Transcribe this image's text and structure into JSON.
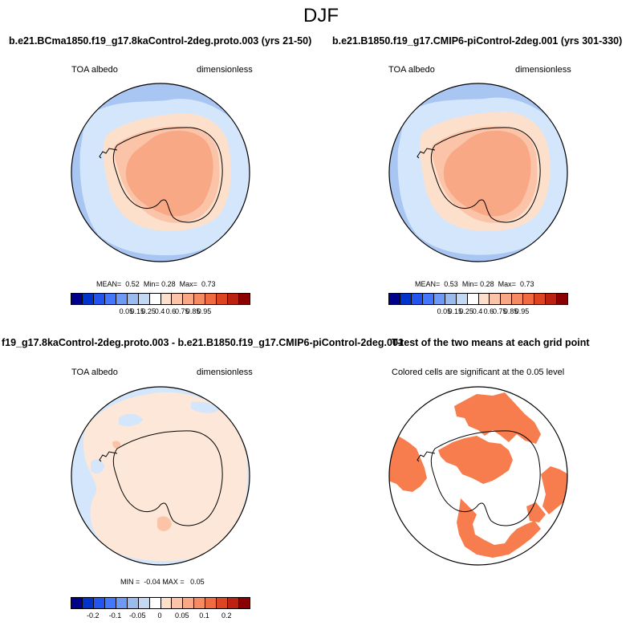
{
  "season": "DJF",
  "panels": {
    "top_left": {
      "case_title": "b.e21.BCma1850.f19_g17.8kaControl-2deg.proto.003 (yrs 21-50)",
      "variable": "TOA albedo",
      "units": "dimensionless",
      "stats": {
        "mean_label": "MEAN=",
        "mean": "0.52",
        "min_label": "Min=",
        "min": "0.28",
        "max_label": "Max=",
        "max": "0.73"
      }
    },
    "top_right": {
      "case_title": "b.e21.B1850.f19_g17.CMIP6-piControl-2deg.001 (yrs 301-330)",
      "variable": "TOA albedo",
      "units": "dimensionless",
      "stats": {
        "mean_label": "MEAN=",
        "mean": "0.53",
        "min_label": "Min=",
        "min": "0.28",
        "max_label": "Max=",
        "max": "0.73"
      }
    },
    "bottom_left": {
      "diff_title": "f19_g17.8kaControl-2deg.proto.003 - b.e21.B1850.f19_g17.CMIP6-piControl-2deg.001",
      "variable": "TOA albedo",
      "units": "dimensionless",
      "stats": {
        "min_label": "MIN =",
        "min": "-0.04",
        "max_label": "MAX =",
        "max": "0.05"
      }
    },
    "bottom_right": {
      "title": "T-test of the two means at each grid point",
      "subtitle": "Colored cells are significant at the 0.05 level"
    }
  },
  "colorbar_abs": {
    "colors": [
      "#00008b",
      "#0033cc",
      "#2255ee",
      "#4477ff",
      "#6e9af5",
      "#99bbee",
      "#c3d8f5",
      "#ffffff",
      "#fde0cc",
      "#fbc4a8",
      "#f9a886",
      "#f68a62",
      "#f06a42",
      "#dd4422",
      "#bb2211",
      "#8b0000"
    ],
    "labels": [
      "0.05",
      "0.15",
      "0.25",
      "0.4",
      "0.6",
      "0.75",
      "0.85",
      "0.95"
    ]
  },
  "colorbar_diff": {
    "colors": [
      "#00008b",
      "#0033cc",
      "#2255ee",
      "#4477ff",
      "#6e9af5",
      "#99bbee",
      "#c3d8f5",
      "#ffffff",
      "#fde0cc",
      "#fbc4a8",
      "#f9a886",
      "#f68a62",
      "#f06a42",
      "#dd4422",
      "#bb2211",
      "#8b0000"
    ],
    "labels": [
      "-0.2",
      "-0.1",
      "-0.05",
      "0",
      "0.05",
      "0.1",
      "0.2"
    ]
  },
  "colors": {
    "ocean_far": "#a9c6f3",
    "ocean_mid": "#d4e6fb",
    "seaice": "#fde0cc",
    "ice_sheet": "#f9a886",
    "ice_edge": "#fbc4a8",
    "diff_pos": "#fde7d8",
    "diff_neg": "#d4e6fb",
    "ttest_sig": "#f77d4e"
  }
}
